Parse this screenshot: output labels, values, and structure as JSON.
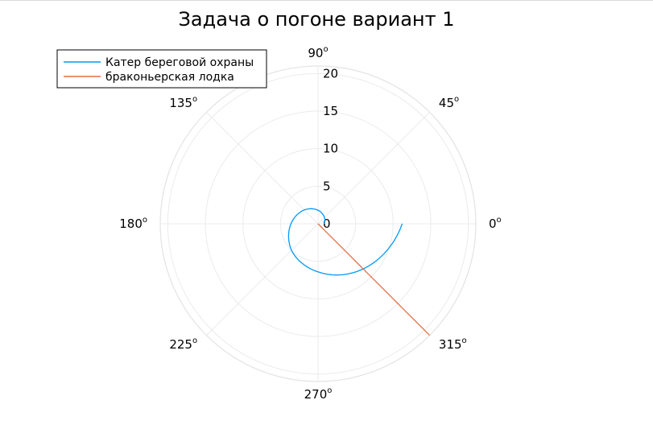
{
  "chart_data": {
    "type": "polar-line",
    "title": "Задача о погоне вариант 1",
    "angle_unit_label": "o",
    "angular_ticks": [
      0,
      45,
      90,
      135,
      180,
      225,
      270,
      315
    ],
    "radial_ticks": [
      0,
      5,
      10,
      15,
      20
    ],
    "rlim": [
      0,
      21
    ],
    "grid": true,
    "legend_position": "top-left",
    "series": [
      {
        "name": "Катер береговой охраны",
        "color": "#009af9",
        "kind": "log-spiral",
        "points_theta_deg_r": [
          [
            0,
            0.8
          ],
          [
            45,
            1.2
          ],
          [
            90,
            1.8
          ],
          [
            135,
            2.6
          ],
          [
            180,
            3.6
          ],
          [
            225,
            5.0
          ],
          [
            270,
            6.4
          ],
          [
            315,
            8.5
          ],
          [
            360,
            11.2
          ]
        ]
      },
      {
        "name": "браконьерская лодка",
        "color": "#e26f46",
        "kind": "ray",
        "theta_deg": 315,
        "r_range": [
          0,
          21
        ]
      }
    ]
  }
}
